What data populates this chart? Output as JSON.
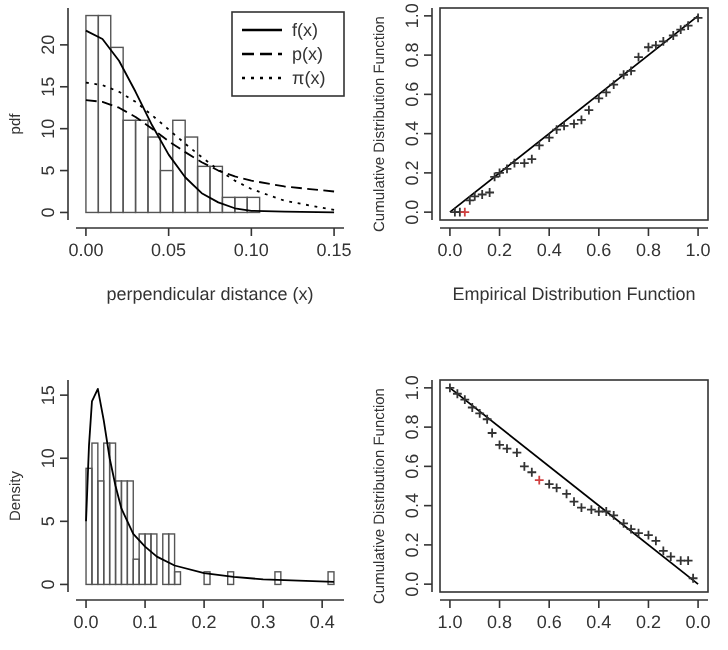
{
  "chart_data": [
    {
      "type": "histogram",
      "xlabel": "perpendicular distance (x)",
      "ylabel": "pdf",
      "color": "#555555",
      "bins": [
        0,
        0.0075,
        0.015,
        0.0225,
        0.03,
        0.0375,
        0.045,
        0.0525,
        0.06,
        0.0675,
        0.075,
        0.0825,
        0.09,
        0.0975,
        0.105
      ],
      "values": [
        23.5,
        23.5,
        19.7,
        11,
        11,
        9,
        5,
        11,
        9,
        5.5,
        5.5,
        1.8,
        1.8,
        1.8
      ],
      "xlim": [
        -0.006,
        0.156
      ],
      "ylim": [
        -0.9,
        24.4
      ],
      "xticks": [
        {
          "value": 0,
          "label": "0.00"
        },
        {
          "value": 0.05,
          "label": "0.05"
        },
        {
          "value": 0.1,
          "label": "0.10"
        },
        {
          "value": 0.15,
          "label": "0.15"
        }
      ],
      "yticks": [
        0,
        5,
        10,
        15,
        20
      ],
      "legend": "top right",
      "series": [
        {
          "type": "line",
          "name": "f(x)",
          "color": "#000000",
          "line_style": "solid",
          "x": [
            0,
            0.01,
            0.02,
            0.03,
            0.04,
            0.05,
            0.06,
            0.07,
            0.08,
            0.09,
            0.1,
            0.12,
            0.15
          ],
          "values": [
            21.7,
            20.7,
            18.1,
            14.4,
            10.4,
            6.9,
            4.2,
            2.3,
            1.2,
            0.5,
            0.2,
            0.1,
            0
          ]
        },
        {
          "type": "line",
          "name": "p(x)",
          "color": "#000000",
          "line_style": "dashed",
          "x": [
            0,
            0.01,
            0.02,
            0.03,
            0.04,
            0.05,
            0.06,
            0.07,
            0.08,
            0.09,
            0.1,
            0.12,
            0.15
          ],
          "values": [
            13.4,
            13.2,
            12.5,
            11.4,
            10,
            8.5,
            7.2,
            6,
            5,
            4.3,
            3.8,
            3.1,
            2.5
          ]
        },
        {
          "type": "line",
          "name": "π(x)",
          "color": "#000000",
          "line_style": "dotted",
          "x": [
            0,
            0.01,
            0.02,
            0.03,
            0.04,
            0.05,
            0.06,
            0.07,
            0.08,
            0.09,
            0.1,
            0.12,
            0.15
          ],
          "values": [
            15.5,
            15.2,
            14.4,
            13.2,
            11.6,
            9.9,
            8.2,
            6.6,
            5.1,
            3.8,
            2.8,
            1.4,
            0.3
          ]
        }
      ]
    },
    {
      "type": "scatter",
      "xlabel": "Empirical Distribution Function",
      "ylabel": "Cumulative Distribution Function",
      "xlim": [
        -0.04,
        1.04
      ],
      "ylim": [
        -0.04,
        1.04
      ],
      "xticks": [
        {
          "value": 0,
          "label": "0.0"
        },
        {
          "value": 0.2,
          "label": "0.2"
        },
        {
          "value": 0.4,
          "label": "0.4"
        },
        {
          "value": 0.6,
          "label": "0.6"
        },
        {
          "value": 0.8,
          "label": "0.8"
        },
        {
          "value": 1,
          "label": "1.0"
        }
      ],
      "yticks": [
        {
          "value": 0,
          "label": "0.0"
        },
        {
          "value": 0.2,
          "label": "0.2"
        },
        {
          "value": 0.4,
          "label": "0.4"
        },
        {
          "value": 0.6,
          "label": "0.6"
        },
        {
          "value": 0.8,
          "label": "0.8"
        },
        {
          "value": 1,
          "label": "1.0"
        }
      ],
      "series": [
        {
          "type": "line",
          "color": "#000000",
          "x": [
            0,
            1
          ],
          "values": [
            0,
            1
          ]
        },
        {
          "type": "scatter",
          "marker": "cross",
          "color": "#333333",
          "x": [
            0.02,
            0.04,
            0.08,
            0.1,
            0.13,
            0.16,
            0.18,
            0.2,
            0.23,
            0.26,
            0.3,
            0.33,
            0.36,
            0.4,
            0.43,
            0.46,
            0.5,
            0.53,
            0.56,
            0.6,
            0.63,
            0.66,
            0.7,
            0.73,
            0.76,
            0.8,
            0.83,
            0.86,
            0.9,
            0.93,
            0.96,
            1.0
          ],
          "values": [
            0,
            0,
            0.06,
            0.08,
            0.09,
            0.1,
            0.18,
            0.2,
            0.22,
            0.25,
            0.25,
            0.27,
            0.34,
            0.38,
            0.42,
            0.44,
            0.45,
            0.47,
            0.52,
            0.58,
            0.61,
            0.65,
            0.7,
            0.72,
            0.79,
            0.84,
            0.85,
            0.87,
            0.9,
            0.93,
            0.95,
            0.99
          ]
        },
        {
          "type": "scatter",
          "marker": "cross",
          "color": "#d04040",
          "x": [
            0.06
          ],
          "values": [
            0
          ]
        }
      ]
    },
    {
      "type": "histogram",
      "ylabel": "Density",
      "color": "#555555",
      "bins": [
        0,
        0.01,
        0.02,
        0.03,
        0.04,
        0.05,
        0.06,
        0.07,
        0.08,
        0.09,
        0.1,
        0.11,
        0.12,
        0.13,
        0.14,
        0.15,
        0.16,
        0.17,
        0.18,
        0.19,
        0.2,
        0.21,
        0.22,
        0.23,
        0.24,
        0.25,
        0.26,
        0.27,
        0.28,
        0.29,
        0.3,
        0.31,
        0.32,
        0.33,
        0.34,
        0.35,
        0.36,
        0.37,
        0.38,
        0.39,
        0.4,
        0.41,
        0.42
      ],
      "values": [
        9.2,
        11.2,
        8.2,
        11.2,
        11.2,
        8.2,
        8.2,
        8.2,
        2,
        4,
        4,
        4,
        0,
        4,
        4,
        1,
        0,
        0,
        0,
        0,
        1,
        0,
        0,
        0,
        1,
        0,
        0,
        0,
        0,
        0,
        0,
        0,
        1,
        0,
        0,
        0,
        0,
        0,
        0,
        0,
        0,
        1
      ],
      "xlim": [
        -0.017,
        0.437
      ],
      "ylim": [
        -0.6,
        16.2
      ],
      "xticks": [
        {
          "value": 0,
          "label": "0.0"
        },
        {
          "value": 0.1,
          "label": "0.1"
        },
        {
          "value": 0.2,
          "label": "0.2"
        },
        {
          "value": 0.3,
          "label": "0.3"
        },
        {
          "value": 0.4,
          "label": "0.4"
        }
      ],
      "yticks": [
        0,
        5,
        10,
        15
      ],
      "series": [
        {
          "type": "line",
          "color": "#000000",
          "line_style": "solid",
          "x": [
            0,
            0.005,
            0.01,
            0.02,
            0.03,
            0.04,
            0.05,
            0.06,
            0.08,
            0.1,
            0.12,
            0.15,
            0.2,
            0.25,
            0.3,
            0.42
          ],
          "values": [
            5,
            11,
            14.5,
            15.5,
            13,
            10,
            7.8,
            6,
            4,
            3,
            2.2,
            1.5,
            0.9,
            0.6,
            0.4,
            0.2
          ]
        }
      ]
    },
    {
      "type": "scatter",
      "ylabel": "Cumulative Distribution Function",
      "xlim": [
        1.04,
        -0.04
      ],
      "ylim": [
        -0.04,
        1.04
      ],
      "xticks": [
        {
          "value": 1,
          "label": "1.0"
        },
        {
          "value": 0.8,
          "label": "0.8"
        },
        {
          "value": 0.6,
          "label": "0.6"
        },
        {
          "value": 0.4,
          "label": "0.4"
        },
        {
          "value": 0.2,
          "label": "0.2"
        },
        {
          "value": 0,
          "label": "0.0"
        }
      ],
      "yticks": [
        {
          "value": 0,
          "label": "0.0"
        },
        {
          "value": 0.2,
          "label": "0.2"
        },
        {
          "value": 0.4,
          "label": "0.4"
        },
        {
          "value": 0.6,
          "label": "0.6"
        },
        {
          "value": 0.8,
          "label": "0.8"
        },
        {
          "value": 1,
          "label": "1.0"
        }
      ],
      "series": [
        {
          "type": "line",
          "color": "#000000",
          "x": [
            1,
            0
          ],
          "values": [
            1,
            0
          ]
        },
        {
          "type": "scatter",
          "marker": "cross",
          "color": "#333333",
          "x": [
            1,
            0.97,
            0.94,
            0.91,
            0.88,
            0.85,
            0.83,
            0.8,
            0.77,
            0.73,
            0.7,
            0.67,
            0.6,
            0.57,
            0.53,
            0.5,
            0.47,
            0.43,
            0.4,
            0.37,
            0.34,
            0.3,
            0.27,
            0.24,
            0.2,
            0.17,
            0.14,
            0.11,
            0.07,
            0.04,
            0.02
          ],
          "values": [
            1,
            0.97,
            0.94,
            0.9,
            0.87,
            0.84,
            0.77,
            0.71,
            0.69,
            0.67,
            0.6,
            0.57,
            0.51,
            0.49,
            0.46,
            0.42,
            0.39,
            0.38,
            0.37,
            0.37,
            0.35,
            0.31,
            0.28,
            0.26,
            0.25,
            0.22,
            0.17,
            0.14,
            0.12,
            0.12,
            0.03
          ]
        },
        {
          "type": "scatter",
          "marker": "cross",
          "color": "#d04040",
          "x": [
            0.64
          ],
          "values": [
            0.53
          ]
        }
      ]
    }
  ]
}
